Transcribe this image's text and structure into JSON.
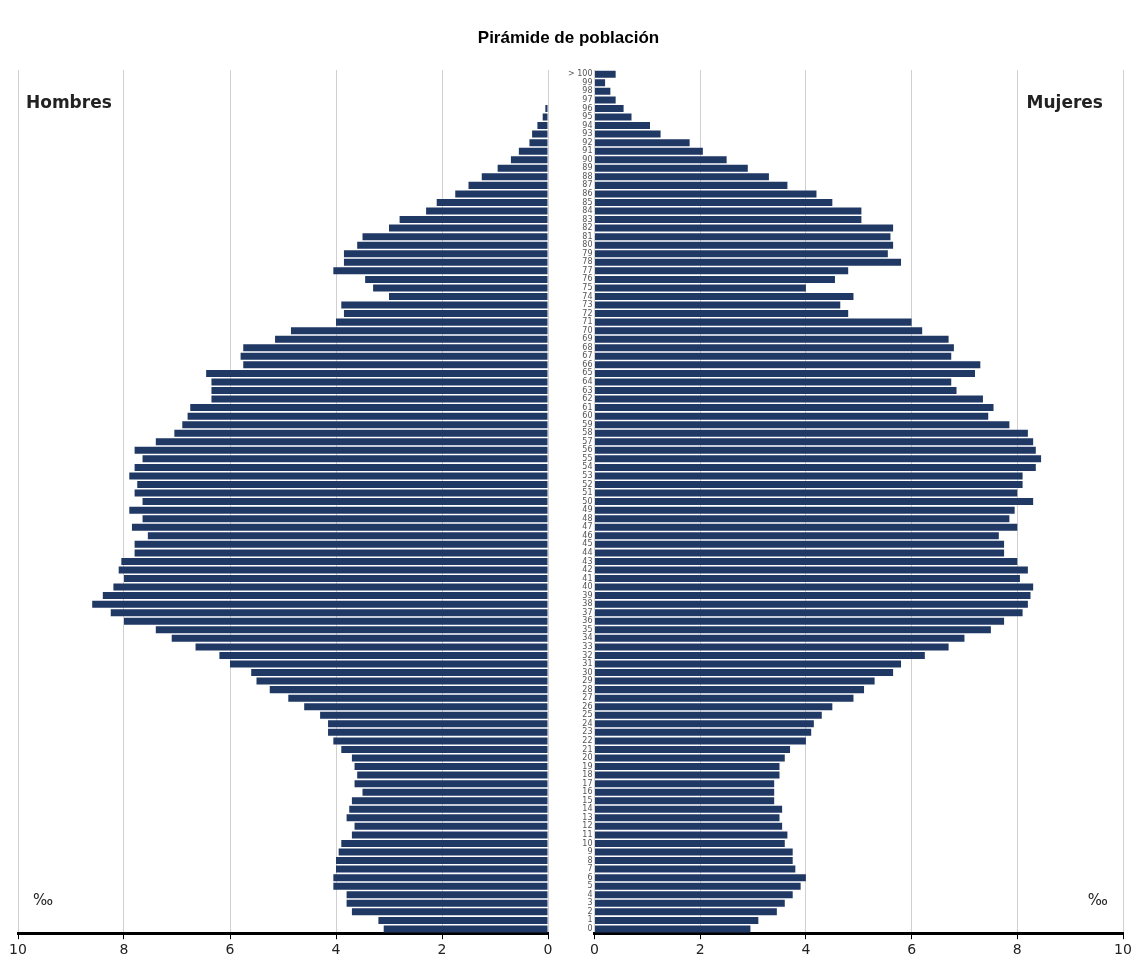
{
  "chart_data": [
    {
      "type": "bar",
      "orientation": "horizontal",
      "title": "Pirámide de población",
      "tick_labels": "x",
      "grid": "x",
      "annotations": [
        "‰"
      ],
      "categories": [
        null,
        null,
        null,
        null,
        null,
        null,
        null,
        null,
        null,
        null,
        null,
        null,
        null,
        null,
        null,
        null,
        null,
        null,
        null,
        null,
        null,
        null,
        null,
        null,
        null,
        null,
        null,
        null,
        null,
        null,
        null,
        null,
        null,
        null,
        null,
        null,
        null,
        null,
        null,
        null,
        null,
        null,
        null,
        null,
        null,
        null,
        null,
        null,
        null,
        null,
        null,
        null,
        null,
        null,
        null,
        null,
        null,
        null,
        null,
        null,
        null,
        null,
        null,
        null,
        null,
        null,
        null,
        null,
        null,
        null,
        null,
        null,
        null,
        null,
        null,
        null,
        null,
        null,
        null,
        null,
        null,
        null,
        null,
        null,
        null,
        null,
        null,
        null,
        null,
        null,
        null,
        null,
        null,
        null,
        null,
        null,
        null,
        null,
        null,
        null,
        null
      ],
      "xlim": [
        10,
        0
      ],
      "xticks": [
        10,
        8,
        6,
        4,
        2,
        0
      ],
      "series": [
        {
          "name": "Hombres",
          "color": "#1f3864",
          "values": [
            0,
            0,
            0,
            0,
            0.05,
            0.1,
            0.2,
            0.3,
            0.35,
            0.55,
            0.7,
            0.95,
            1.25,
            1.5,
            1.75,
            2.1,
            2.3,
            2.8,
            3.0,
            3.5,
            3.6,
            3.85,
            3.85,
            4.05,
            3.45,
            3.3,
            3.0,
            3.9,
            3.85,
            4.0,
            4.85,
            5.15,
            5.75,
            5.8,
            5.75,
            6.45,
            6.35,
            6.35,
            6.35,
            6.75,
            6.8,
            6.9,
            7.05,
            7.4,
            7.8,
            7.65,
            7.8,
            7.9,
            7.75,
            7.8,
            7.65,
            7.9,
            7.65,
            7.85,
            7.55,
            7.8,
            7.8,
            8.05,
            8.1,
            8.0,
            8.2,
            8.4,
            8.6,
            8.25,
            8.0,
            7.4,
            7.1,
            6.65,
            6.2,
            6.0,
            5.6,
            5.5,
            5.25,
            4.9,
            4.6,
            4.3,
            4.15,
            4.15,
            4.05,
            3.9,
            3.7,
            3.65,
            3.6,
            3.65,
            3.5,
            3.7,
            3.75,
            3.8,
            3.65,
            3.7,
            3.9,
            3.95,
            4.0,
            4.0,
            4.05,
            4.05,
            3.8,
            3.8,
            3.7,
            3.2,
            3.1
          ]
        }
      ]
    },
    {
      "type": "bar",
      "orientation": "horizontal",
      "grid": "x",
      "annotations": [
        "‰"
      ],
      "categories": [
        "> 100",
        "99",
        "98",
        "97",
        "96",
        "95",
        "94",
        "93",
        "92",
        "91",
        "90",
        "89",
        "88",
        "87",
        "86",
        "85",
        "84",
        "83",
        "82",
        "81",
        "80",
        "79",
        "78",
        "77",
        "76",
        "75",
        "74",
        "73",
        "72",
        "71",
        "70",
        "69",
        "68",
        "67",
        "66",
        "65",
        "64",
        "63",
        "62",
        "61",
        "60",
        "59",
        "58",
        "57",
        "56",
        "55",
        "54",
        "53",
        "52",
        "51",
        "50",
        "49",
        "48",
        "47",
        "46",
        "45",
        "44",
        "43",
        "42",
        "41",
        "40",
        "39",
        "38",
        "37",
        "36",
        "35",
        "34",
        "33",
        "32",
        "31",
        "30",
        "29",
        "28",
        "27",
        "26",
        "25",
        "24",
        "23",
        "22",
        "21",
        "20",
        "19",
        "18",
        "17",
        "16",
        "15",
        "14",
        "13",
        "12",
        "11",
        "10",
        "9",
        "8",
        "7",
        "6",
        "5",
        "4",
        "3",
        "2",
        "1",
        "0"
      ],
      "xlim": [
        0,
        10
      ],
      "xticks": [
        0,
        2,
        4,
        6,
        8,
        10
      ],
      "series": [
        {
          "name": "Mujeres",
          "color": "#1f3864",
          "values": [
            0.4,
            0.2,
            0.3,
            0.4,
            0.55,
            0.7,
            1.05,
            1.25,
            1.8,
            2.05,
            2.5,
            2.9,
            3.3,
            3.65,
            4.2,
            4.5,
            5.05,
            5.05,
            5.65,
            5.6,
            5.65,
            5.55,
            5.8,
            4.8,
            4.55,
            4.0,
            4.9,
            4.65,
            4.8,
            6.0,
            6.2,
            6.7,
            6.8,
            6.75,
            7.3,
            7.2,
            6.75,
            6.85,
            7.35,
            7.55,
            7.45,
            7.85,
            8.2,
            8.3,
            8.35,
            8.45,
            8.35,
            8.1,
            8.1,
            8.0,
            8.3,
            7.95,
            7.85,
            8.0,
            7.65,
            7.75,
            7.75,
            8.0,
            8.2,
            8.05,
            8.3,
            8.25,
            8.2,
            8.1,
            7.75,
            7.5,
            7.0,
            6.7,
            6.25,
            5.8,
            5.65,
            5.3,
            5.1,
            4.9,
            4.5,
            4.3,
            4.15,
            4.1,
            4.0,
            3.7,
            3.6,
            3.5,
            3.5,
            3.4,
            3.4,
            3.4,
            3.55,
            3.5,
            3.55,
            3.65,
            3.6,
            3.75,
            3.75,
            3.8,
            4.0,
            3.9,
            3.75,
            3.6,
            3.45,
            3.1,
            2.95
          ]
        }
      ]
    }
  ]
}
